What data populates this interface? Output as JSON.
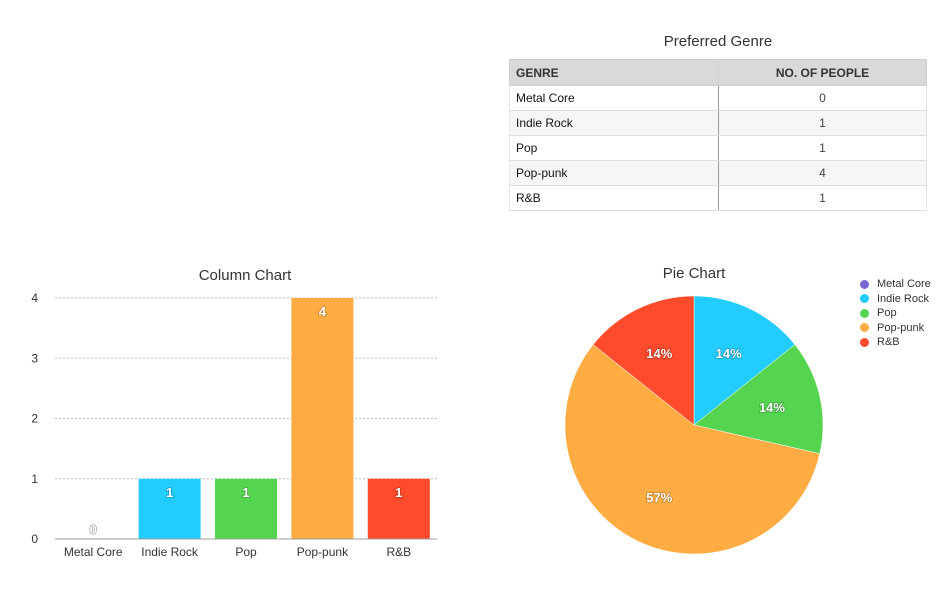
{
  "table": {
    "title": "Preferred Genre",
    "headers": [
      "GENRE",
      "NO. OF PEOPLE"
    ],
    "rows": [
      {
        "genre": "Metal Core",
        "count": "0"
      },
      {
        "genre": "Indie Rock",
        "count": "1"
      },
      {
        "genre": "Pop",
        "count": "1"
      },
      {
        "genre": "Pop-punk",
        "count": "4"
      },
      {
        "genre": "R&B",
        "count": "1"
      }
    ]
  },
  "chart_data": [
    {
      "type": "bar",
      "title": "Column Chart",
      "categories": [
        "Metal Core",
        "Indie Rock",
        "Pop",
        "Pop-punk",
        "R&B"
      ],
      "values": [
        0,
        1,
        1,
        4,
        1
      ],
      "colors": [
        "#7b68d6",
        "#22ccff",
        "#55d44f",
        "#ffad42",
        "#ff4b2b"
      ],
      "xlabel": "",
      "ylabel": "",
      "ylim": [
        0,
        4
      ],
      "yticks": [
        "0",
        "1",
        "2",
        "3",
        "4"
      ],
      "grid": true,
      "data_labels": [
        "0",
        "1",
        "1",
        "4",
        "1"
      ]
    },
    {
      "type": "pie",
      "title": "Pie Chart",
      "categories": [
        "Metal Core",
        "Indie Rock",
        "Pop",
        "Pop-punk",
        "R&B"
      ],
      "values": [
        0,
        1,
        1,
        4,
        1
      ],
      "colors": [
        "#7b68d6",
        "#22ccff",
        "#55d44f",
        "#ffad42",
        "#ff4b2b"
      ],
      "data_labels": [
        "",
        "14%",
        "14%",
        "57%",
        "14%"
      ],
      "legend": "right"
    }
  ]
}
